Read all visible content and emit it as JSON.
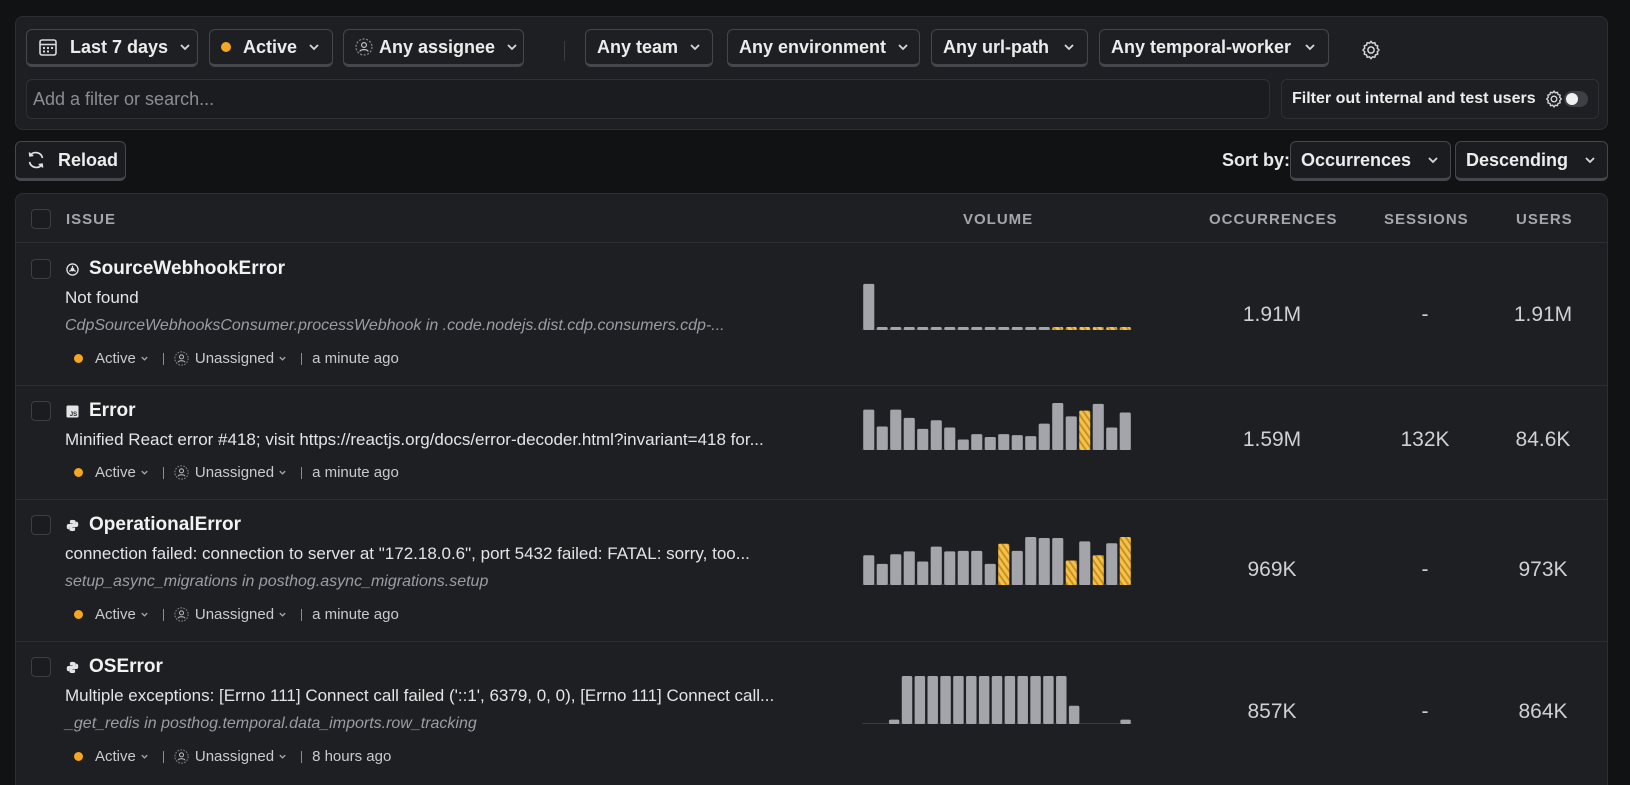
{
  "filters": {
    "date_range": "Last 7 days",
    "status": "Active",
    "assignee": "Any assignee",
    "team": "Any team",
    "environment": "Any environment",
    "url_path": "Any url-path",
    "temporal_worker": "Any temporal-worker",
    "search_placeholder": "Add a filter or search...",
    "internal_users_label": "Filter out internal and test users",
    "internal_users_enabled": false
  },
  "toolbar": {
    "reload_label": "Reload",
    "sort_label": "Sort by:",
    "sort_field": "Occurrences",
    "sort_order": "Descending"
  },
  "table": {
    "headers": {
      "issue": "ISSUE",
      "volume": "VOLUME",
      "occurrences": "OCCURRENCES",
      "sessions": "SESSIONS",
      "users": "USERS"
    },
    "rows": [
      {
        "icon": "webhook-icon",
        "title": "SourceWebhookError",
        "message": "Not found",
        "source": "CdpSourceWebhooksConsumer.processWebhook in .code.nodejs.dist.cdp.consumers.cdp-...",
        "status": "Active",
        "assignee": "Unassigned",
        "last_seen": "a minute ago",
        "occurrences": "1.91M",
        "sessions": "-",
        "users": "1.91M",
        "volume": [
          0.96,
          0.06,
          0.06,
          0.06,
          0.06,
          0.06,
          0.06,
          0.06,
          0.06,
          0.06,
          0.06,
          0.06,
          0.06,
          0.06,
          0.06,
          0.06,
          0.06,
          0.06,
          0.06,
          0.06
        ],
        "volume_highlight": [
          14,
          15,
          16,
          17,
          18,
          19
        ]
      },
      {
        "icon": "javascript-icon",
        "title": "Error",
        "message": "Minified React error #418; visit https://reactjs.org/docs/error-decoder.html?invariant=418 for...",
        "source": "",
        "status": "Active",
        "assignee": "Unassigned",
        "last_seen": "a minute ago",
        "occurrences": "1.59M",
        "sessions": "132K",
        "users": "84.6K",
        "volume": [
          0.84,
          0.49,
          0.84,
          0.67,
          0.44,
          0.62,
          0.47,
          0.22,
          0.33,
          0.27,
          0.33,
          0.31,
          0.29,
          0.55,
          0.98,
          0.7,
          0.82,
          0.96,
          0.47,
          0.78
        ],
        "volume_highlight": [
          16
        ]
      },
      {
        "icon": "python-icon",
        "title": "OperationalError",
        "message": "connection failed: connection to server at \"172.18.0.6\", port 5432 failed: FATAL: sorry, too...",
        "source": "setup_async_migrations in posthog.async_migrations.setup",
        "status": "Active",
        "assignee": "Unassigned",
        "last_seen": "a minute ago",
        "occurrences": "969K",
        "sessions": "-",
        "users": "973K",
        "volume": [
          0.62,
          0.44,
          0.64,
          0.7,
          0.49,
          0.8,
          0.7,
          0.71,
          0.71,
          0.44,
          0.86,
          0.71,
          1.0,
          0.98,
          0.98,
          0.51,
          0.91,
          0.62,
          0.87,
          1.0
        ],
        "volume_highlight": [
          10,
          15,
          17,
          19
        ]
      },
      {
        "icon": "python-icon",
        "title": "OSError",
        "message": "Multiple exceptions: [Errno 111] Connect call failed ('::1', 6379, 0, 0), [Errno 111] Connect call...",
        "source": "_get_redis in posthog.temporal.data_imports.row_tracking",
        "status": "Active",
        "assignee": "Unassigned",
        "last_seen": "8 hours ago",
        "occurrences": "857K",
        "sessions": "-",
        "users": "864K",
        "volume": [
          0.0,
          0.0,
          0.09,
          1.0,
          1.0,
          1.0,
          1.0,
          1.0,
          1.0,
          1.0,
          1.0,
          1.0,
          1.0,
          1.0,
          1.0,
          1.0,
          0.38,
          0.0,
          0.0,
          0.0,
          0.09
        ],
        "volume_highlight": []
      }
    ]
  },
  "colors": {
    "accent": "#f5a623",
    "bar": "#a4a5aa",
    "highlight": "#f2c14e"
  }
}
